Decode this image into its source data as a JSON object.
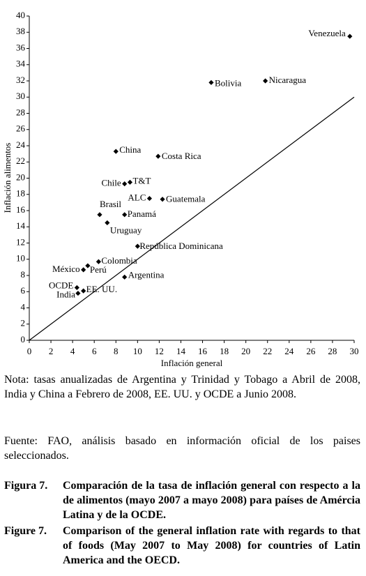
{
  "chart_data": {
    "type": "scatter",
    "x_label": "Inflación general",
    "y_label": "Inflación alimentos",
    "xlim": [
      0,
      30
    ],
    "ylim": [
      0,
      40
    ],
    "xticks": [
      0,
      2,
      4,
      6,
      8,
      10,
      12,
      14,
      16,
      18,
      20,
      22,
      24,
      26,
      28,
      30
    ],
    "yticks": [
      0,
      2,
      4,
      6,
      8,
      10,
      12,
      14,
      16,
      18,
      20,
      22,
      24,
      26,
      28,
      30,
      32,
      34,
      36,
      38,
      40
    ],
    "diagonal": true,
    "color": "#000000",
    "labels": [
      "Venezuela",
      "Bolivia",
      "Nicaragua",
      "China",
      "Costa Rica",
      "Chile",
      "T&T",
      "ALC",
      "Guatemala",
      "Brasil",
      "Panamá",
      "Uruguay",
      "República Dominicana",
      "Colombia",
      "Perú",
      "México",
      "Argentina",
      "OCDE",
      "EE. UU.",
      "India"
    ],
    "x": [
      29.6,
      16.8,
      21.8,
      8.0,
      11.9,
      8.8,
      9.3,
      11.1,
      12.3,
      6.5,
      8.8,
      7.2,
      10.0,
      6.4,
      5.4,
      5.0,
      8.8,
      4.4,
      5.0,
      4.5
    ],
    "values": [
      37.5,
      31.8,
      32.0,
      23.3,
      22.7,
      19.3,
      19.5,
      17.5,
      17.4,
      15.5,
      15.5,
      14.5,
      11.6,
      9.7,
      9.2,
      8.7,
      7.8,
      6.5,
      6.1,
      5.8
    ]
  },
  "note": "Nota: tasas anualizadas de Argentina y Trinidad y Tobago a Abril de 2008, India y China a Febrero de 2008, EE. UU. y OCDE a Junio 2008.",
  "source": "Fuente: FAO, análisis basado en información oficial de los paises seleccionados.",
  "captions": [
    {
      "label": "Figura 7.",
      "text": "Comparación de la tasa de inflación general con respecto a la de alimentos (mayo 2007 a mayo 2008) para países de Amércia Latina y de la OCDE."
    },
    {
      "label": "Figure 7.",
      "text": "Comparison of the general inflation rate with regards to that of foods (May 2007 to May 2008) for countries of Latin America and the OECD."
    }
  ]
}
